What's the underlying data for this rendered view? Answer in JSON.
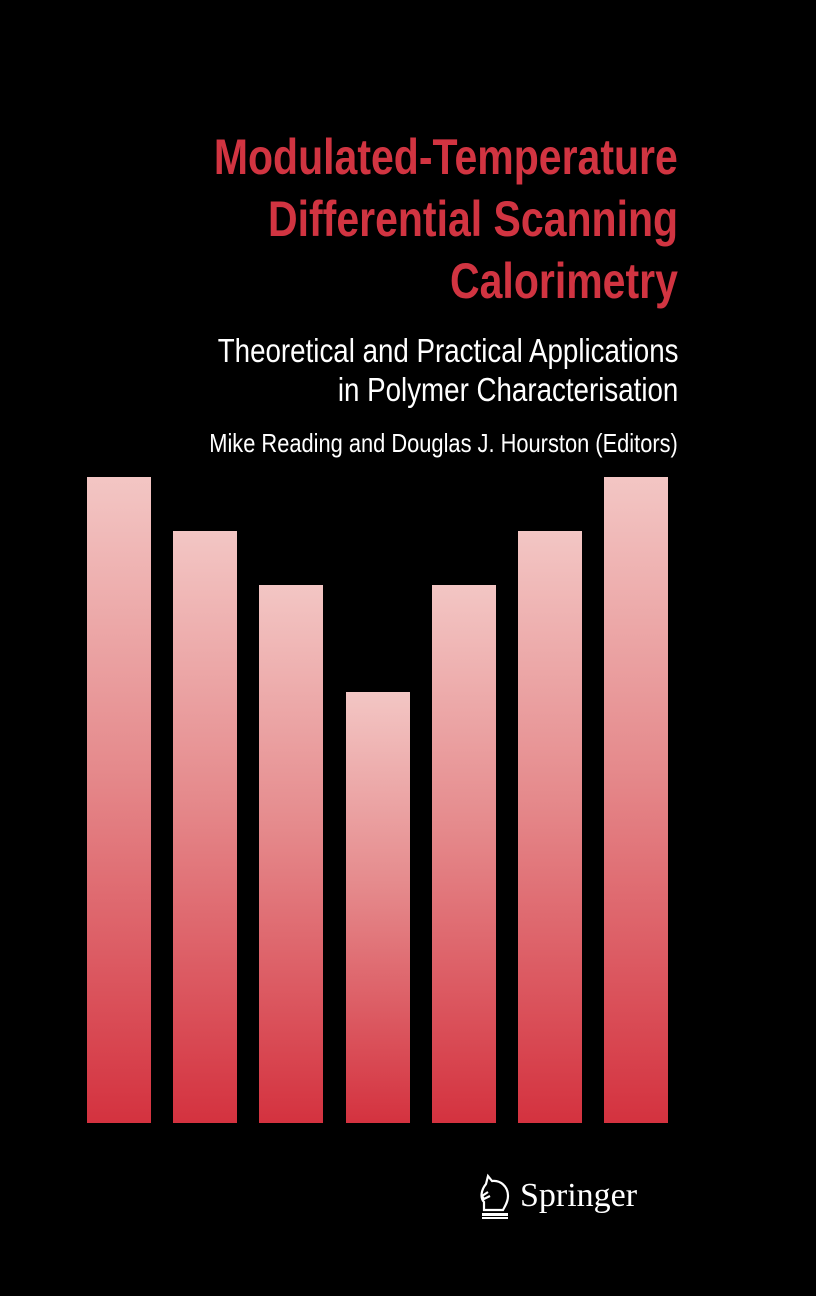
{
  "cover": {
    "title_lines": [
      "Modulated-Temperature",
      "Differential  Scanning",
      "Calorimetry"
    ],
    "subtitle_lines": [
      "Theoretical and Practical Applications",
      "in Polymer Characterisation"
    ],
    "authors": "Mike Reading and Douglas J. Hourston (Editors)",
    "publisher": "Springer",
    "publisher_logo_icon": "knight-horse-icon",
    "colors": {
      "background": "#000000",
      "title": "#d13441",
      "bar_top": "#f3c6c4",
      "bar_bottom": "#d4323f"
    },
    "bar_relative_heights": [
      1.0,
      0.917,
      0.833,
      0.667,
      0.833,
      0.917,
      1.0
    ]
  }
}
